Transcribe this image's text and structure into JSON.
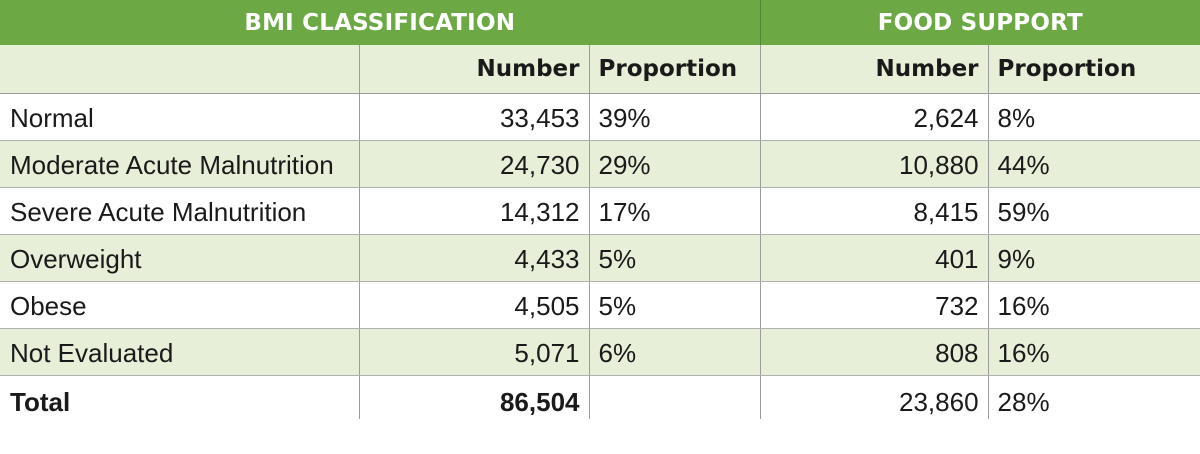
{
  "header": {
    "bmi_title": "BMI CLASSIFICATION",
    "food_title": "FOOD SUPPORT"
  },
  "subheader": {
    "bmi_number": "Number",
    "bmi_proportion": "Proportion",
    "food_number": "Number",
    "food_proportion": "Proportion"
  },
  "rows": [
    {
      "label": "Normal",
      "bmi_number": "33,453",
      "bmi_proportion": "39%",
      "food_number": "2,624",
      "food_proportion": "8%"
    },
    {
      "label": "Moderate Acute Malnutrition",
      "bmi_number": "24,730",
      "bmi_proportion": "29%",
      "food_number": "10,880",
      "food_proportion": "44%"
    },
    {
      "label": "Severe Acute Malnutrition",
      "bmi_number": "14,312",
      "bmi_proportion": "17%",
      "food_number": "8,415",
      "food_proportion": "59%"
    },
    {
      "label": "Overweight",
      "bmi_number": "4,433",
      "bmi_proportion": "5%",
      "food_number": "401",
      "food_proportion": "9%"
    },
    {
      "label": "Obese",
      "bmi_number": "4,505",
      "bmi_proportion": "5%",
      "food_number": "732",
      "food_proportion": "16%"
    },
    {
      "label": "Not Evaluated",
      "bmi_number": "5,071",
      "bmi_proportion": "6%",
      "food_number": "808",
      "food_proportion": "16%"
    }
  ],
  "total": {
    "label": "Total",
    "bmi_number": "86,504",
    "bmi_proportion": "",
    "food_number": "23,860",
    "food_proportion": "28%"
  },
  "colors": {
    "header_green": "#6ca843",
    "row_tint": "#e7efd8",
    "text": "#1a1a1a"
  }
}
